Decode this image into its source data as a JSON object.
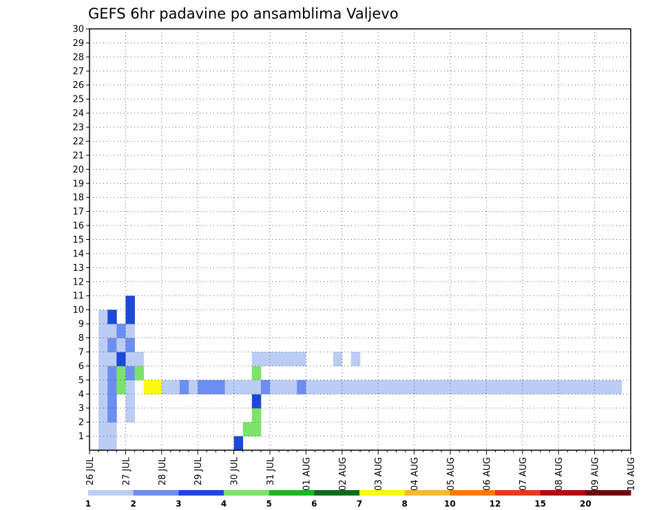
{
  "chart_data": {
    "type": "heatmap",
    "title": "GEFS 6hr padavine po ansamblima Valjevo",
    "y_ticks": [
      "1",
      "2",
      "3",
      "4",
      "5",
      "6",
      "7",
      "8",
      "9",
      "10",
      "11",
      "12",
      "13",
      "14",
      "15",
      "16",
      "17",
      "18",
      "19",
      "20",
      "21",
      "22",
      "23",
      "24",
      "25",
      "26",
      "27",
      "28",
      "29",
      "30"
    ],
    "x_ticks": [
      "26 JUL",
      "27 JUL",
      "28 JUL",
      "29 JUL",
      "30 JUL",
      "31 JUL",
      "01 AUG",
      "02 AUG",
      "03 AUG",
      "04 AUG",
      "05 AUG",
      "06 AUG",
      "07 AUG",
      "08 AUG",
      "09 AUG",
      "10 AUG"
    ],
    "y_range": [
      0,
      30
    ],
    "x_range": [
      0,
      60
    ],
    "grid": true,
    "colorbar": {
      "labels": [
        "1",
        "2",
        "3",
        "4",
        "5",
        "6",
        "7",
        "8",
        "10",
        "12",
        "15",
        "20"
      ],
      "colors": [
        "#bccdf4",
        "#6c8ef0",
        "#1e49d8",
        "#7be36a",
        "#1db61d",
        "#0d6b1c",
        "#fafa10",
        "#fbb73a",
        "#f57b17",
        "#e03d1e",
        "#aa0f0f",
        "#6e0808"
      ]
    },
    "cells": [
      [
        1,
        16,
        2
      ],
      [
        2,
        17,
        3
      ],
      [
        2,
        18,
        3
      ],
      [
        3,
        18,
        3
      ],
      [
        4,
        18,
        2
      ],
      [
        5,
        18,
        3
      ],
      [
        6,
        18,
        3
      ],
      [
        7,
        18,
        0
      ],
      [
        7,
        19,
        0
      ],
      [
        7,
        20,
        0
      ],
      [
        7,
        21,
        0
      ],
      [
        7,
        22,
        0
      ],
      [
        7,
        23,
        0
      ],
      [
        7,
        27,
        0
      ],
      [
        7,
        29,
        0
      ],
      [
        1,
        1,
        0
      ],
      [
        2,
        1,
        0
      ],
      [
        3,
        1,
        0
      ],
      [
        4,
        1,
        0
      ],
      [
        5,
        1,
        0
      ],
      [
        6,
        1,
        0
      ],
      [
        7,
        1,
        0
      ],
      [
        8,
        1,
        0
      ],
      [
        9,
        1,
        0
      ],
      [
        10,
        1,
        0
      ],
      [
        1,
        2,
        0
      ],
      [
        2,
        2,
        0
      ],
      [
        3,
        2,
        1
      ],
      [
        4,
        2,
        1
      ],
      [
        5,
        2,
        1
      ],
      [
        6,
        2,
        1
      ],
      [
        7,
        2,
        0
      ],
      [
        8,
        2,
        1
      ],
      [
        9,
        2,
        0
      ],
      [
        10,
        2,
        2
      ],
      [
        5,
        3,
        3
      ],
      [
        6,
        3,
        3
      ],
      [
        7,
        3,
        2
      ],
      [
        8,
        3,
        0
      ],
      [
        9,
        3,
        1
      ],
      [
        3,
        4,
        0
      ],
      [
        4,
        4,
        0
      ],
      [
        5,
        4,
        0
      ],
      [
        6,
        4,
        1
      ],
      [
        7,
        4,
        0
      ],
      [
        8,
        4,
        1
      ],
      [
        9,
        4,
        0
      ],
      [
        10,
        4,
        2
      ],
      [
        11,
        4,
        2
      ],
      [
        6,
        5,
        3
      ],
      [
        7,
        5,
        0
      ],
      [
        5,
        6,
        6
      ],
      [
        5,
        7,
        6
      ],
      [
        5,
        8,
        0
      ],
      [
        5,
        9,
        0
      ],
      [
        5,
        10,
        1
      ],
      [
        5,
        11,
        0
      ],
      [
        5,
        12,
        1
      ],
      [
        5,
        13,
        1
      ],
      [
        5,
        14,
        1
      ],
      [
        5,
        15,
        0
      ],
      [
        5,
        16,
        0
      ],
      [
        5,
        17,
        0
      ],
      [
        5,
        18,
        0
      ],
      [
        5,
        19,
        1
      ],
      [
        5,
        20,
        0
      ],
      [
        5,
        21,
        0
      ],
      [
        5,
        22,
        0
      ],
      [
        5,
        23,
        1
      ],
      [
        5,
        24,
        0
      ],
      [
        5,
        25,
        0
      ],
      [
        5,
        26,
        0
      ],
      [
        5,
        27,
        0
      ],
      [
        5,
        28,
        0
      ],
      [
        5,
        29,
        0
      ],
      [
        5,
        30,
        0
      ],
      [
        5,
        31,
        0
      ],
      [
        5,
        32,
        0
      ],
      [
        5,
        33,
        0
      ],
      [
        5,
        34,
        0
      ],
      [
        5,
        35,
        0
      ],
      [
        5,
        36,
        0
      ],
      [
        5,
        37,
        0
      ],
      [
        5,
        38,
        0
      ],
      [
        5,
        39,
        0
      ],
      [
        5,
        40,
        0
      ],
      [
        5,
        41,
        0
      ],
      [
        5,
        42,
        0
      ],
      [
        5,
        43,
        0
      ],
      [
        5,
        44,
        0
      ],
      [
        5,
        45,
        0
      ],
      [
        5,
        46,
        0
      ],
      [
        5,
        47,
        0
      ],
      [
        5,
        48,
        0
      ],
      [
        5,
        49,
        0
      ],
      [
        5,
        50,
        0
      ],
      [
        5,
        51,
        0
      ],
      [
        5,
        52,
        0
      ],
      [
        5,
        53,
        0
      ],
      [
        5,
        54,
        0
      ],
      [
        5,
        55,
        0
      ],
      [
        5,
        56,
        0
      ],
      [
        5,
        57,
        0
      ],
      [
        5,
        58,
        0
      ]
    ]
  }
}
